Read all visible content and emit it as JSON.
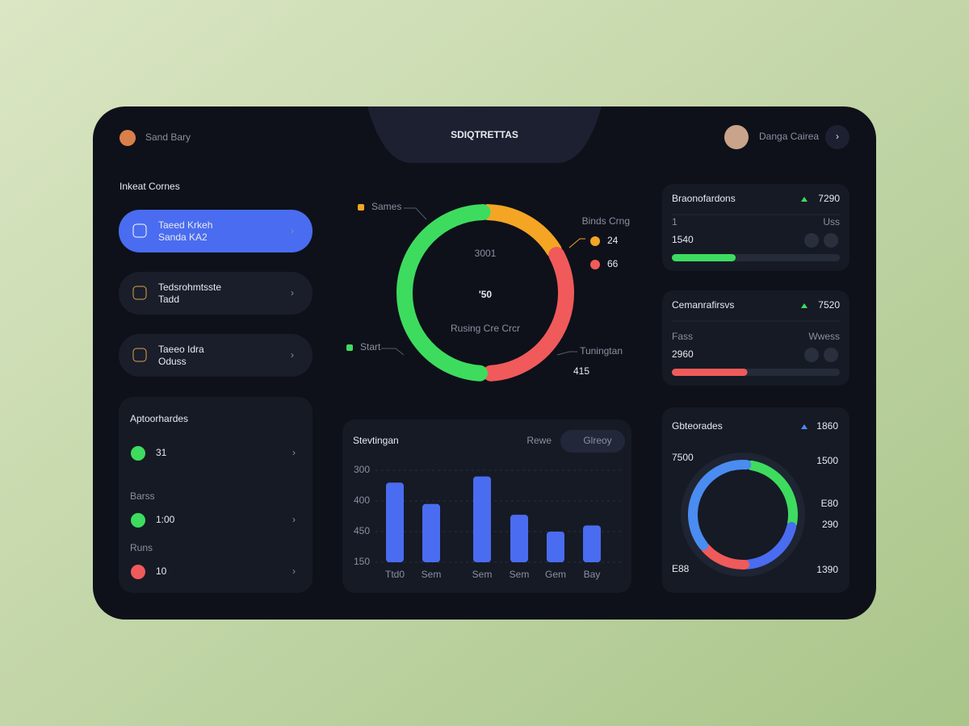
{
  "header": {
    "user": "Sand Bary",
    "title": "SDIQTRETTAS",
    "account": "Danga Cairea"
  },
  "sidebar": {
    "title": "Inkeat Cornes",
    "items": [
      {
        "title": "Taeed Krkeh",
        "subtitle": "Sanda KA2"
      },
      {
        "title": "Tedsrohmtsste",
        "subtitle": "Tadd"
      },
      {
        "title": "Taeeo Idra",
        "subtitle": "Oduss"
      }
    ]
  },
  "appointments": {
    "title": "Aptoorhardes",
    "items": [
      {
        "value": 31,
        "color": "#3ddc5f"
      },
      {
        "label": "Barss",
        "value": "1:00",
        "color": "#3ddc5f"
      },
      {
        "label": "Runs",
        "value": 10,
        "color": "#f05a5a"
      }
    ]
  },
  "gauge": {
    "caption_top": "3001",
    "value": "'50",
    "caption": "Rusing Cre Crcr",
    "labels": {
      "top_left": "Sames",
      "bottom_left": "Start",
      "top_right": "Binds Crng",
      "bottom_right": "Tuningtan"
    },
    "stats": [
      {
        "value": 24,
        "color": "#f5a524"
      },
      {
        "value": 66,
        "color": "#f05a5a"
      },
      {
        "value": 415,
        "color": "#3ddc5f"
      }
    ]
  },
  "chart": {
    "type": "bar",
    "title": "Stevtingan",
    "tabs": [
      "Rewe",
      "Glreoy"
    ],
    "ytick_labels": [
      "300",
      "400",
      "450",
      "150"
    ],
    "categories": [
      "Ttd0",
      "Sem",
      "Sem",
      "Sem",
      "Gem",
      "Bay"
    ],
    "values": [
      2.6,
      1.9,
      2.8,
      1.55,
      1.0,
      1.2
    ],
    "ylim": [
      0,
      3
    ],
    "color": "#4a6cf0"
  },
  "cards": [
    {
      "title": "Braonofardons",
      "delta": 7290,
      "delta_color": "#3ddc5f",
      "left_label": "1",
      "right_label": "Uss",
      "value": 1540,
      "progress": 38,
      "progress_color": "#3ddc5f"
    },
    {
      "title": "Cemanrafirsvs",
      "delta": 7520,
      "delta_color": "#3ddc5f",
      "left_label": "Fass",
      "right_label": "Wwess",
      "value": 2960,
      "progress": 45,
      "progress_color": "#f05a5a"
    }
  ],
  "donut_card": {
    "title": "Gbteorades",
    "delta": 1860,
    "delta_color": "#f05a5a",
    "labels": [
      "7500",
      "1500",
      "E80",
      "290",
      "E88",
      "1390"
    ]
  }
}
